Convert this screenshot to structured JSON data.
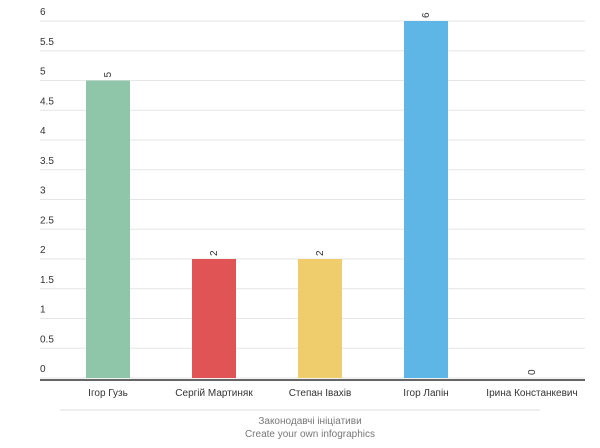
{
  "chart_data": {
    "type": "bar",
    "categories": [
      "Ігор Гузь",
      "Сергій Мартиняк",
      "Степан Івахів",
      "Ігор Лапін",
      "Ірина Констанкевич"
    ],
    "values": [
      5,
      2,
      2,
      6,
      0
    ],
    "colors": [
      "#8fc6a9",
      "#e05456",
      "#f0cd6c",
      "#5db6e6",
      "#b07cc6"
    ],
    "ylim": [
      0,
      6
    ],
    "yticks": [
      0,
      0.5,
      1,
      1.5,
      2,
      2.5,
      3,
      3.5,
      4,
      4.5,
      5,
      5.5,
      6
    ],
    "grid": true,
    "footer": {
      "title": "Законодавчі ініціативи",
      "credit": "Create your own infographics"
    }
  }
}
